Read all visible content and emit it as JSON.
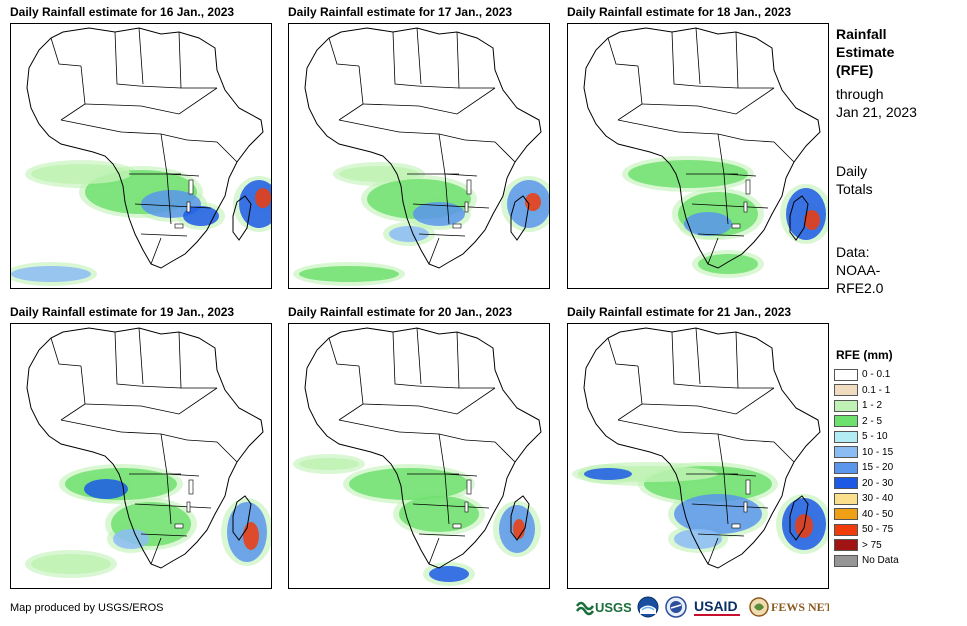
{
  "panels": [
    {
      "title": "Daily Rainfall estimate for 16 Jan., 2023"
    },
    {
      "title": "Daily Rainfall estimate for 17 Jan., 2023"
    },
    {
      "title": "Daily Rainfall estimate for 18 Jan., 2023"
    },
    {
      "title": "Daily Rainfall estimate for 19 Jan., 2023"
    },
    {
      "title": "Daily Rainfall estimate for 20 Jan., 2023"
    },
    {
      "title": "Daily Rainfall estimate for 21 Jan., 2023"
    }
  ],
  "side": {
    "title_line1": "Rainfall",
    "title_line2": "Estimate",
    "title_line3": "(RFE)",
    "through": "through",
    "date": "Jan 21, 2023",
    "daily1": "Daily",
    "daily2": "Totals",
    "data1": "Data:",
    "data2": "NOAA-",
    "data3": "RFE2.0"
  },
  "legend": {
    "title": "RFE (mm)",
    "items": [
      {
        "label": "0 - 0.1",
        "color": "#ffffff"
      },
      {
        "label": "0.1 - 1",
        "color": "#f0dcc0"
      },
      {
        "label": "1 - 2",
        "color": "#bff2b4"
      },
      {
        "label": "2 - 5",
        "color": "#6ee06e"
      },
      {
        "label": "5 - 10",
        "color": "#b4ecf4"
      },
      {
        "label": "10 - 15",
        "color": "#8cbcf4"
      },
      {
        "label": "15 - 20",
        "color": "#5a96ec"
      },
      {
        "label": "20 - 30",
        "color": "#1c5ae6"
      },
      {
        "label": "30 - 40",
        "color": "#fae08c"
      },
      {
        "label": "40 - 50",
        "color": "#f0a014"
      },
      {
        "label": "50 - 75",
        "color": "#f03c0a"
      },
      {
        "label": "> 75",
        "color": "#a01414"
      },
      {
        "label": "No Data",
        "color": "#969696"
      }
    ]
  },
  "footer": {
    "credit": "Map produced by USGS/EROS",
    "logo_usgs": "USGS",
    "logo_noaa": "NOAA",
    "logo_usaid": "USAID",
    "logo_fews": "FEWS NET"
  }
}
